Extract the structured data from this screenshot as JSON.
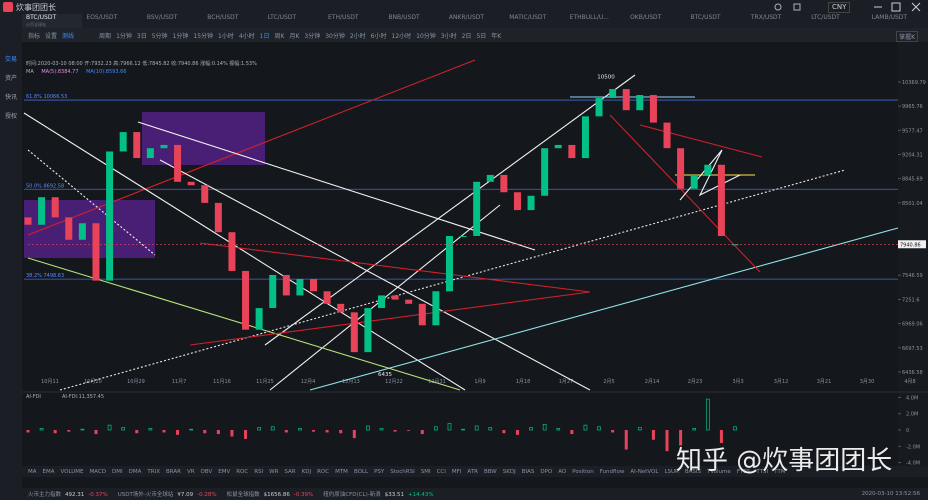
{
  "window": {
    "title": "炊事团团长",
    "currency": "CNY"
  },
  "sidebar": [
    "交易",
    "资产",
    "快讯",
    "授权"
  ],
  "tabs": [
    {
      "pair": "BTC/USDT",
      "exchange": "火币全球站"
    },
    {
      "pair": "EOS/USDT"
    },
    {
      "pair": "BSV/USDT"
    },
    {
      "pair": "BCH/USDT"
    },
    {
      "pair": "LTC/USDT"
    },
    {
      "pair": "ETH/USDT"
    },
    {
      "pair": "BNB/USDT"
    },
    {
      "pair": "ANKR/USDT"
    },
    {
      "pair": "MATIC/USDT"
    },
    {
      "pair": "ETHBULL/U..."
    },
    {
      "pair": "OKB/USDT"
    },
    {
      "pair": "BTC/USDT"
    },
    {
      "pair": "TRX/USDT"
    },
    {
      "pair": "LTC/USDT"
    },
    {
      "pair": "LAMB/USDT"
    }
  ],
  "toolbar": {
    "tools": [
      "指标",
      "设置",
      "测线"
    ],
    "period_label": "周期",
    "periods": [
      "1分钟",
      "3日",
      "5分钟",
      "1分钟",
      "15分钟",
      "1小时",
      "4小时",
      "1日",
      "周K",
      "月K",
      "3分钟",
      "30分钟",
      "2小时",
      "6小时",
      "12小时",
      "10分钟",
      "3小时",
      "2日",
      "5日",
      "年K"
    ],
    "right": "掌握K"
  },
  "info_line": "时间:2020-03-10 08:00  开:7932.23  高:7966.12  低:7845.82  收:7940.86  涨幅:0.14%  振幅:1.53%",
  "ma_line": {
    "label": "MA",
    "ma5": "MA(5):8384.77",
    "ma10": "MA(10):8593.66"
  },
  "chart_data": {
    "type": "candlestick",
    "log": true,
    "ylim": [
      6228,
      10930
    ],
    "yticks": [
      10369.79,
      9965.76,
      9577.47,
      9204.31,
      8845.69,
      8501.04,
      7546.59,
      7251.6,
      6969.06,
      6697.53,
      6436.58
    ],
    "last_price": 7940.86,
    "up_color": "#03c087",
    "down_color": "#e94359",
    "open": [
      8300,
      8200,
      8580,
      8300,
      8000,
      8220,
      7480,
      9250,
      9550,
      9150,
      9300,
      9350,
      8800,
      8750,
      8500,
      8100,
      7600,
      6900,
      7150,
      7550,
      7300,
      7500,
      7350,
      7200,
      7100,
      6650,
      7150,
      7300,
      7250,
      7200,
      6950,
      7350,
      8050,
      8050,
      8800,
      8900,
      8650,
      8400,
      8600,
      9300,
      9350,
      9150,
      9800,
      10100,
      10250,
      9900,
      10150,
      9700,
      9300,
      8700,
      8900,
      9050,
      7932.23
    ],
    "close": [
      8200,
      8580,
      8300,
      8000,
      8220,
      7480,
      9250,
      9550,
      9150,
      9300,
      9350,
      8800,
      8750,
      8500,
      8100,
      7600,
      6900,
      7150,
      7550,
      7300,
      7500,
      7350,
      7200,
      7100,
      6650,
      7150,
      7300,
      7250,
      7200,
      6950,
      7350,
      8050,
      8050,
      8800,
      8900,
      8650,
      8400,
      8600,
      9300,
      9350,
      9150,
      9800,
      10100,
      10250,
      9900,
      10150,
      9700,
      9300,
      8700,
      8900,
      9050,
      8050,
      7940.86
    ],
    "x_labels": [
      "10月11",
      "10月20",
      "10月29",
      "11月7",
      "11月16",
      "11月25",
      "12月4",
      "12月13",
      "12月22",
      "12月31",
      "1月9",
      "1月18",
      "1月27",
      "2月5",
      "2月14",
      "2月23",
      "3月3",
      "3月12",
      "3月21",
      "3月30",
      "4月8"
    ],
    "levels": [
      {
        "value": 10066.53,
        "label": "61.8% 10066.53"
      },
      {
        "value": 8692.58,
        "label": "50.0% 8692.58"
      },
      {
        "value": 7498.63,
        "label": "38.2% 7498.63"
      }
    ],
    "annotations": [
      {
        "value": 10500,
        "label": "10500"
      },
      {
        "value": 6435,
        "label": "6435"
      }
    ]
  },
  "indicator": {
    "name": "AI-FDI",
    "readout": "AI-FDI:11,357.45",
    "ylim": [
      -4.3,
      4.3
    ],
    "yticks": [
      {
        "value": 4,
        "label": "4.0M"
      },
      {
        "value": 2,
        "label": "2.0M"
      },
      0,
      {
        "value": -2,
        "label": "-2.0M"
      },
      {
        "value": -4,
        "label": "-4.0M"
      }
    ],
    "values": [
      -0.3,
      0.2,
      -0.4,
      -0.2,
      0.1,
      -0.5,
      0.6,
      0.3,
      -0.4,
      0.2,
      -0.3,
      -0.6,
      0.1,
      -0.4,
      -0.5,
      -0.8,
      -1.1,
      0.3,
      0.4,
      -0.3,
      0.2,
      -0.2,
      -0.3,
      -0.4,
      -1.0,
      0.5,
      0.2,
      -0.2,
      -0.1,
      -0.5,
      0.4,
      0.8,
      0.1,
      0.5,
      0.3,
      -0.4,
      -0.6,
      0.3,
      0.7,
      0.2,
      -0.5,
      0.6,
      0.4,
      -0.3,
      -2.4,
      0.3,
      -1.2,
      -2.6,
      -1.9,
      0.2,
      3.8,
      -1.6,
      0.4
    ]
  },
  "indicators_bar": [
    "MA",
    "EMA",
    "VOLUME",
    "MACD",
    "DMI",
    "DMA",
    "TRIX",
    "BRAR",
    "VR",
    "OBV",
    "EMV",
    "ROC",
    "RSI",
    "WR",
    "SAR",
    "KDJ",
    "ROC",
    "MTM",
    "BOLL",
    "PSY",
    "StochRSI",
    "SMI",
    "CCI",
    "MFI",
    "ATR",
    "BBW",
    "SKDJ",
    "BIAS",
    "DPO",
    "AO",
    "Position",
    "Fundflow",
    "AI-NetVOL",
    "LSUR",
    "BASIS",
    "TVolume",
    "FTBS",
    "TTSI",
    "TTM"
  ],
  "status_bar": {
    "items": [
      {
        "name": "火币主力指数",
        "price": "492.31",
        "change": "-0.37%"
      },
      {
        "name": "USDT场外-火币全球站",
        "price": "¥7.09",
        "change": "-0.28%"
      },
      {
        "name": "松鼠全球指数",
        "price": "$1656.86",
        "change": "-0.39%"
      },
      {
        "name": "纽约原油CFD(CL)-新浪",
        "price": "$33.51",
        "change": "+14.43%"
      }
    ],
    "time": "2020-03-10 13:52:56"
  },
  "watermark": "知乎 @炊事团团长"
}
